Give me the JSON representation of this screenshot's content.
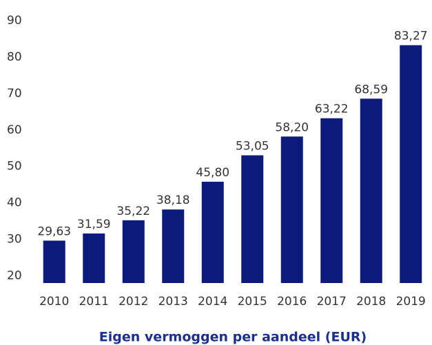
{
  "chart_data": {
    "type": "bar",
    "title": "Eigen vermoggen per aandeel (EUR)",
    "categories": [
      "2010",
      "2011",
      "2012",
      "2013",
      "2014",
      "2015",
      "2016",
      "2017",
      "2018",
      "2019"
    ],
    "values": [
      29.63,
      31.59,
      35.22,
      38.18,
      45.8,
      53.05,
      58.2,
      63.22,
      68.59,
      83.27
    ],
    "value_labels": [
      "29,63",
      "31,59",
      "35,22",
      "38,18",
      "45,80",
      "53,05",
      "58,20",
      "63,22",
      "68,59",
      "83,27"
    ],
    "color": "#0c1a7c",
    "ylim": [
      18,
      90
    ],
    "yticks": [
      20,
      30,
      40,
      50,
      60,
      70,
      80,
      90
    ],
    "grid": false
  }
}
